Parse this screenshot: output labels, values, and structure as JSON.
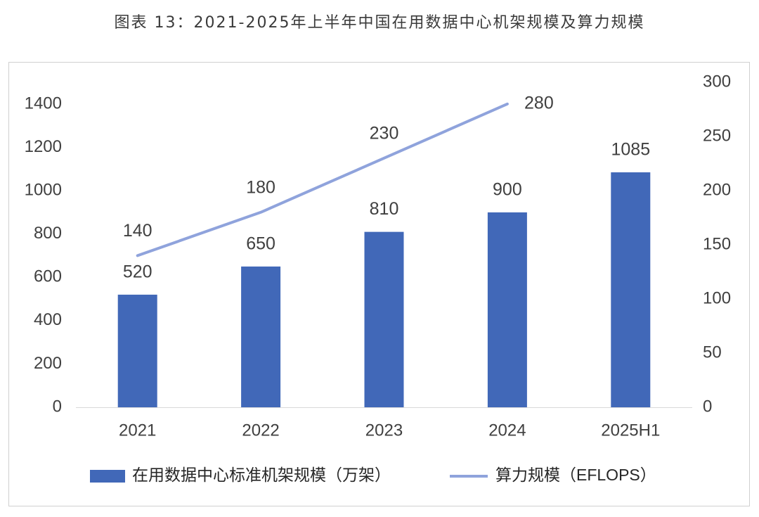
{
  "title": "图表 13：2021-2025年上半年中国在用数据中心机架规模及算力规模",
  "chart_data": {
    "type": "bar",
    "categories": [
      "2021",
      "2022",
      "2023",
      "2024",
      "2025H1"
    ],
    "series": [
      {
        "name": "在用数据中心标准机架规模（万架）",
        "type": "bar",
        "axis": "left",
        "color": "#4168b8",
        "values": [
          520,
          650,
          810,
          900,
          1085
        ]
      },
      {
        "name": "算力规模（EFLOPS）",
        "type": "line",
        "axis": "right",
        "color": "#8fa3dc",
        "values": [
          140,
          180,
          230,
          280,
          null
        ]
      }
    ],
    "y_left": {
      "lim": [
        0,
        1400
      ],
      "ticks": [
        0,
        200,
        400,
        600,
        800,
        1000,
        1200,
        1400
      ]
    },
    "y_right": {
      "lim": [
        0,
        300
      ],
      "ticks": [
        0,
        50,
        100,
        150,
        200,
        250,
        300
      ]
    },
    "grid": false,
    "legend_position": "bottom"
  }
}
